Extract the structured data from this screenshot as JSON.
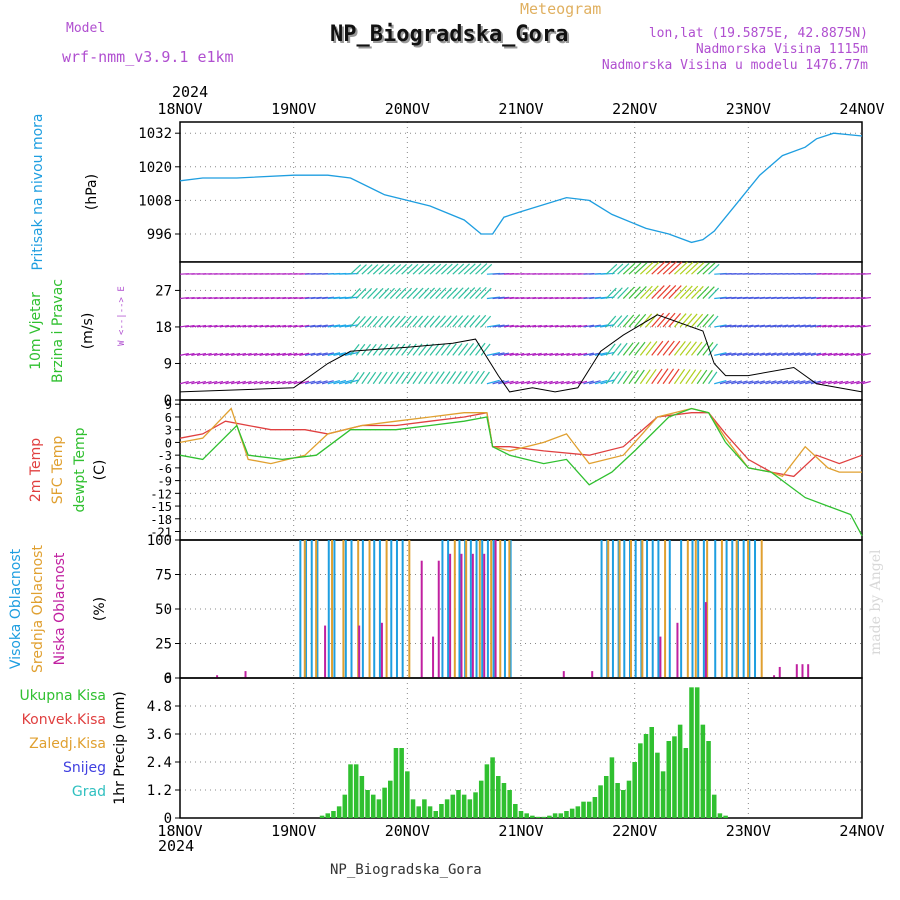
{
  "header": {
    "meteogram_label": "Meteogram",
    "model_label": "Model",
    "model_name": "wrf-nmm_v3.9.1 e1km",
    "station": "NP_Biogradska_Gora",
    "coords": "lon,lat (19.5875E, 42.8875N)",
    "elevation": "Nadmorska Visina 1115m",
    "model_elevation": "Nadmorska Visina u modelu 1476.77m",
    "year": "2024",
    "footer_station": "NP_Biogradska_Gora",
    "watermark": "made by Angel"
  },
  "colors": {
    "pressure": "#1e9ee0",
    "t2m": "#e04040",
    "sfc": "#e0a030",
    "dew": "#30c030",
    "high": "#1e9ee0",
    "mid": "#e0a030",
    "low": "#c020a0",
    "precip": "#30c030",
    "conv": "#e04040",
    "snow": "#4040e0",
    "purple": "#b04fd0"
  },
  "chart_data": [
    {
      "type": "line",
      "panel": "pressure",
      "ylabel_lines": [
        "Pritisak na nivou mora",
        "(hPa)"
      ],
      "ylim": [
        986,
        1036
      ],
      "yticks": [
        996,
        1008,
        1020,
        1032
      ],
      "x_ticks": [
        "18NOV",
        "19NOV",
        "20NOV",
        "21NOV",
        "22NOV",
        "23NOV",
        "24NOV"
      ],
      "x": [
        0,
        0.2,
        0.5,
        1.0,
        1.3,
        1.5,
        1.8,
        2.2,
        2.5,
        2.65,
        2.75,
        2.85,
        3.0,
        3.4,
        3.6,
        3.8,
        4.1,
        4.3,
        4.5,
        4.6,
        4.7,
        4.9,
        5.1,
        5.3,
        5.5,
        5.6,
        5.75,
        6.0
      ],
      "values": [
        1015,
        1016,
        1016,
        1017,
        1017,
        1016,
        1010,
        1006,
        1001,
        996,
        996,
        1002,
        1004,
        1009,
        1008,
        1003,
        998,
        996,
        993,
        994,
        997,
        1007,
        1017,
        1024,
        1027,
        1030,
        1032,
        1031
      ]
    },
    {
      "type": "line",
      "panel": "wind",
      "ylabel_lines": [
        "10m Vjetar",
        "Brzina i Pravac",
        "(m/s)"
      ],
      "ylim": [
        0,
        34
      ],
      "yticks": [
        0,
        9,
        18,
        27
      ],
      "series": [
        {
          "name": "",
          "x": [
            0,
            1.0,
            1.3,
            1.5,
            2.0,
            2.4,
            2.6,
            2.8,
            2.9,
            3.1,
            3.3,
            3.5,
            3.7,
            3.9,
            4.2,
            4.6,
            4.7,
            4.8,
            5.0,
            5.4,
            5.6,
            6.0
          ],
          "values": [
            2,
            3,
            9,
            12,
            13,
            14,
            15,
            6,
            2,
            3,
            2,
            3,
            12,
            16,
            21,
            17,
            9,
            6,
            6,
            8,
            4,
            2
          ]
        }
      ]
    },
    {
      "type": "line",
      "panel": "temperature",
      "ylabel_lines": [
        "2m Temp",
        "SFC Temp",
        "dewpt Temp",
        "(C)"
      ],
      "ylim": [
        -23,
        10
      ],
      "yticks": [
        9,
        6,
        3,
        0,
        -3,
        -6,
        -9,
        -12,
        -15,
        -18,
        -21
      ],
      "series": [
        {
          "name": "2m Temp",
          "x": [
            0,
            0.2,
            0.4,
            0.6,
            0.8,
            1.1,
            1.3,
            1.6,
            1.9,
            2.2,
            2.5,
            2.7,
            2.75,
            2.9,
            3.2,
            3.6,
            3.9,
            4.2,
            4.5,
            4.65,
            4.8,
            5.0,
            5.2,
            5.4,
            5.6,
            5.8,
            6.0
          ],
          "values": [
            1,
            2,
            5,
            4,
            3,
            3,
            2,
            4,
            4,
            5,
            6,
            7,
            -1,
            -1,
            -2,
            -3,
            -1,
            6,
            7,
            7,
            2,
            -4,
            -7,
            -8,
            -3,
            -5,
            -3
          ]
        },
        {
          "name": "SFC Temp",
          "x": [
            0,
            0.2,
            0.45,
            0.6,
            0.8,
            1.1,
            1.3,
            1.6,
            1.9,
            2.2,
            2.5,
            2.7,
            2.75,
            2.9,
            3.2,
            3.4,
            3.6,
            3.9,
            4.2,
            4.5,
            4.65,
            4.8,
            5.0,
            5.2,
            5.3,
            5.5,
            5.7,
            5.8,
            6.0
          ],
          "values": [
            0,
            1,
            8,
            -4,
            -5,
            -3,
            2,
            4,
            5,
            6,
            7,
            7,
            -1,
            -2,
            0,
            2,
            -5,
            -3,
            6,
            8,
            7,
            1,
            -6,
            -7,
            -8,
            -1,
            -6,
            -7,
            -7
          ]
        },
        {
          "name": "dewpt Temp",
          "x": [
            0,
            0.2,
            0.5,
            0.6,
            0.9,
            1.2,
            1.5,
            1.9,
            2.2,
            2.5,
            2.7,
            2.75,
            2.9,
            3.2,
            3.4,
            3.6,
            3.8,
            4.0,
            4.3,
            4.5,
            4.65,
            4.8,
            5.0,
            5.2,
            5.3,
            5.5,
            5.7,
            5.9,
            6.0
          ],
          "values": [
            -3,
            -4,
            4,
            -3,
            -4,
            -3,
            3,
            3,
            4,
            5,
            6,
            -1,
            -3,
            -5,
            -4,
            -10,
            -7,
            -2,
            6,
            8,
            7,
            0,
            -6,
            -7,
            -9,
            -13,
            -15,
            -17,
            -22
          ]
        }
      ]
    },
    {
      "type": "bar",
      "panel": "clouds",
      "ylabel_lines": [
        "Visoka Oblacnost",
        "Srednja Oblacnost",
        "Niska Oblacnost",
        "(%)"
      ],
      "ylim": [
        0,
        100
      ],
      "yticks": [
        0,
        25,
        50,
        75,
        100
      ],
      "series": [
        {
          "name": "Visoka Oblacnost",
          "x": [
            1.05,
            1.1,
            1.15,
            1.2,
            1.3,
            1.35,
            1.45,
            1.5,
            1.6,
            1.7,
            1.75,
            1.85,
            1.9,
            1.95,
            2.3,
            2.35,
            2.45,
            2.5,
            2.55,
            2.6,
            2.65,
            2.7,
            2.75,
            2.85,
            2.9,
            3.7,
            3.75,
            3.8,
            3.85,
            3.9,
            3.95,
            4.0,
            4.05,
            4.1,
            4.15,
            4.2,
            4.3,
            4.4,
            4.5,
            4.55,
            4.6,
            4.7,
            4.8,
            4.85,
            4.9,
            4.95,
            5.0,
            5.05
          ],
          "values": [
            100,
            100,
            100,
            100,
            100,
            100,
            100,
            100,
            100,
            100,
            100,
            100,
            100,
            100,
            100,
            100,
            100,
            100,
            100,
            100,
            100,
            100,
            100,
            100,
            100,
            100,
            100,
            100,
            100,
            100,
            100,
            100,
            100,
            100,
            100,
            100,
            100,
            100,
            100,
            100,
            100,
            100,
            100,
            100,
            100,
            100,
            100,
            100
          ]
        },
        {
          "name": "Srednja Oblacnost",
          "x": [
            1.08,
            1.18,
            1.32,
            1.42,
            1.55,
            1.65,
            1.8,
            2.0,
            2.4,
            2.5,
            2.62,
            2.72,
            2.8,
            2.88,
            3.75,
            3.85,
            3.95,
            4.05,
            4.25,
            4.45,
            4.52,
            4.62,
            4.75,
            4.88,
            4.98,
            5.1
          ],
          "values": [
            100,
            100,
            100,
            100,
            100,
            100,
            100,
            100,
            100,
            100,
            100,
            100,
            100,
            100,
            100,
            100,
            100,
            100,
            100,
            100,
            100,
            100,
            100,
            100,
            100,
            100
          ]
        },
        {
          "name": "Niska Oblacnost",
          "x": [
            0.3,
            0.55,
            1.25,
            1.55,
            1.75,
            2.1,
            2.2,
            2.25,
            2.35,
            2.45,
            2.55,
            2.65,
            2.75,
            3.35,
            3.6,
            4.2,
            4.35,
            4.6,
            5.2,
            5.25,
            5.4,
            5.45,
            5.5
          ],
          "values": [
            2,
            5,
            38,
            38,
            40,
            85,
            30,
            85,
            90,
            90,
            90,
            90,
            100,
            5,
            5,
            30,
            40,
            55,
            2,
            8,
            10,
            10,
            10
          ]
        }
      ]
    },
    {
      "type": "bar",
      "panel": "precipitation",
      "ylabel_lines": [
        "1hr Precip (mm)"
      ],
      "legend": [
        "Ukupna Kisa",
        "Konvek.Kisa",
        "Zaledj.Kisa",
        "Snijeg",
        "Grad"
      ],
      "ylim": [
        0,
        6
      ],
      "yticks": [
        0,
        1.2,
        2.4,
        3.6,
        4.8,
        6
      ],
      "x": [
        1.25,
        1.3,
        1.35,
        1.4,
        1.45,
        1.5,
        1.55,
        1.6,
        1.65,
        1.7,
        1.75,
        1.8,
        1.85,
        1.9,
        1.95,
        2.0,
        2.05,
        2.1,
        2.15,
        2.2,
        2.25,
        2.3,
        2.35,
        2.4,
        2.45,
        2.5,
        2.55,
        2.6,
        2.65,
        2.7,
        2.75,
        2.8,
        2.85,
        2.9,
        2.95,
        3.0,
        3.05,
        3.1,
        3.15,
        3.2,
        3.25,
        3.3,
        3.35,
        3.4,
        3.45,
        3.5,
        3.55,
        3.6,
        3.65,
        3.7,
        3.75,
        3.8,
        3.85,
        3.9,
        3.95,
        4.0,
        4.05,
        4.1,
        4.15,
        4.2,
        4.25,
        4.3,
        4.35,
        4.4,
        4.45,
        4.5,
        4.55,
        4.6,
        4.65,
        4.7,
        4.75,
        4.8
      ],
      "values": [
        0.1,
        0.2,
        0.3,
        0.5,
        1.0,
        2.3,
        2.3,
        1.8,
        1.2,
        1.0,
        0.8,
        1.3,
        1.6,
        3.0,
        3.0,
        2.0,
        0.8,
        0.5,
        0.8,
        0.5,
        0.3,
        0.6,
        0.8,
        1.0,
        1.2,
        1.0,
        0.8,
        1.1,
        1.6,
        2.3,
        2.6,
        1.8,
        1.5,
        1.2,
        0.6,
        0.3,
        0.2,
        0.1,
        0.05,
        0.05,
        0.1,
        0.2,
        0.2,
        0.3,
        0.4,
        0.5,
        0.7,
        0.7,
        0.9,
        1.4,
        1.8,
        2.6,
        1.5,
        1.2,
        1.6,
        2.4,
        3.2,
        3.6,
        3.9,
        2.8,
        2.0,
        3.3,
        3.5,
        4.0,
        3.0,
        5.6,
        5.6,
        4.0,
        3.3,
        1.0,
        0.2,
        0.1
      ]
    }
  ]
}
